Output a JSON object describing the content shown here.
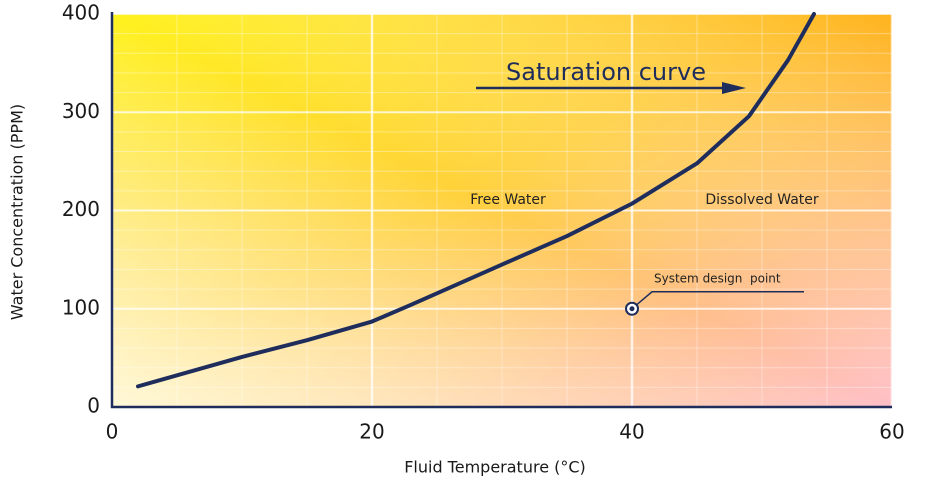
{
  "chart_data": {
    "type": "line",
    "xlabel": "Fluid Temperature (°C)",
    "ylabel": "Water Concentration (PPM)",
    "series": [
      {
        "name": "Saturation curve",
        "color": "#1f2d5c",
        "x": [
          2,
          10,
          15,
          20,
          23,
          30,
          35,
          40,
          45,
          49,
          52,
          54
        ],
        "values": [
          21,
          51,
          68,
          87,
          104,
          145,
          174,
          207,
          248,
          296,
          353,
          400
        ]
      }
    ],
    "design_point": {
      "label": "System design  point",
      "x": 40,
      "y": 100
    },
    "annotations": [
      "Free Water",
      "Dissolved Water"
    ],
    "xlim": [
      0,
      60
    ],
    "xticks": [
      0,
      20,
      40,
      60
    ],
    "ylim": [
      0,
      400
    ],
    "yticks": [
      0,
      100,
      200,
      300,
      400
    ],
    "grid": true
  }
}
